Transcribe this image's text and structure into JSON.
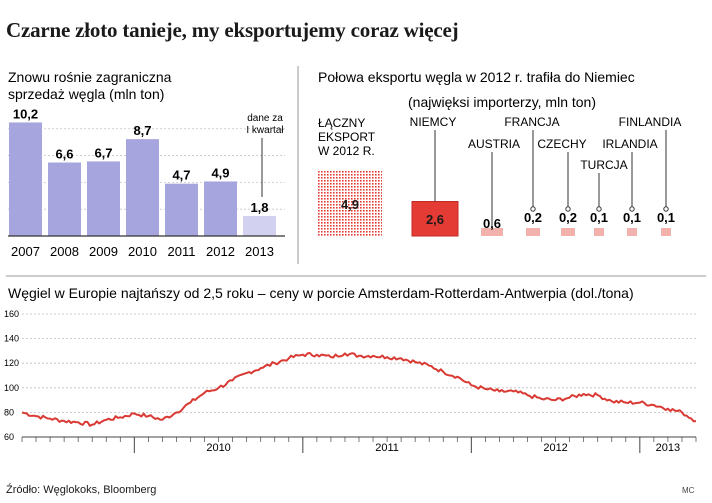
{
  "title": "Czarne złoto tanieje, my eksportujemy coraz więcej",
  "source": "Źródło: Węglokoks, Bloomberg",
  "credit": "MC",
  "chart_data": [
    {
      "type": "bar",
      "title": "Znowu rośnie zagraniczna sprzedaż węgla (mln ton)",
      "title_lines": [
        "Znowu rośnie zagraniczna",
        "sprzedaż węgla (mln ton)"
      ],
      "categories": [
        "2007",
        "2008",
        "2009",
        "2010",
        "2011",
        "2012",
        "2013"
      ],
      "values": [
        10.2,
        6.6,
        6.7,
        8.7,
        4.7,
        4.9,
        1.8
      ],
      "value_labels": [
        "10,2",
        "6,6",
        "6,7",
        "8,7",
        "4,7",
        "4,9",
        "1,8"
      ],
      "annotation_lines": [
        "dane za",
        "I kwartał"
      ],
      "ylim": [
        0,
        10.6
      ],
      "colors": {
        "bar": "#a7a5dd",
        "bar_last": "#d2d2f0",
        "axis": "#333333"
      }
    },
    {
      "type": "bar",
      "title": "Połowa eksportu węgla w 2012 r. trafiła do Niemiec",
      "subtitle": "(najwięksi importerzy, mln ton)",
      "total_label_lines": [
        "ŁĄCZNY",
        "EKSPORT",
        "W 2012 R."
      ],
      "total": {
        "value": 4.9,
        "label": "4,9"
      },
      "categories": [
        "NIEMCY",
        "AUSTRIA",
        "FRANCJA",
        "CZECHY",
        "TURCJA",
        "IRLANDIA",
        "FINLANDIA"
      ],
      "values": [
        2.6,
        0.6,
        0.2,
        0.2,
        0.1,
        0.1,
        0.1
      ],
      "value_labels": [
        "2,6",
        "0,6",
        "0,2",
        "0,2",
        "0,1",
        "0,1",
        "0,1"
      ],
      "colors": {
        "total": "#e43b35",
        "germany": "#e43b35",
        "others": "#f3b1ad"
      }
    },
    {
      "type": "line",
      "title": "Węgiel w Europie najtańszy od 2,5 roku – ceny w porcie Amsterdam-Rotterdam-Antwerpia (dol./tona)",
      "ylim": [
        60,
        160
      ],
      "yticks": [
        60,
        80,
        100,
        120,
        140,
        160
      ],
      "xlim": [
        "2009-05",
        "2013-05"
      ],
      "year_labels": [
        "2010",
        "2011",
        "2012",
        "2013"
      ],
      "series": [
        {
          "color": "#d93a33",
          "x": [
            "2009-05",
            "2009-06",
            "2009-07",
            "2009-08",
            "2009-09",
            "2009-10",
            "2009-11",
            "2009-12",
            "2010-01",
            "2010-02",
            "2010-03",
            "2010-04",
            "2010-05",
            "2010-06",
            "2010-07",
            "2010-08",
            "2010-09",
            "2010-10",
            "2010-11",
            "2010-12",
            "2011-01",
            "2011-02",
            "2011-03",
            "2011-04",
            "2011-05",
            "2011-06",
            "2011-07",
            "2011-08",
            "2011-09",
            "2011-10",
            "2011-11",
            "2011-12",
            "2012-01",
            "2012-02",
            "2012-03",
            "2012-04",
            "2012-05",
            "2012-06",
            "2012-07",
            "2012-08",
            "2012-09",
            "2012-10",
            "2012-11",
            "2012-12",
            "2013-01",
            "2013-02",
            "2013-03",
            "2013-04",
            "2013-05"
          ],
          "values": [
            80,
            77,
            75,
            73,
            72,
            70,
            74,
            76,
            79,
            77,
            74,
            80,
            88,
            96,
            100,
            106,
            112,
            116,
            120,
            124,
            127,
            127,
            125,
            128,
            126,
            126,
            125,
            124,
            121,
            118,
            113,
            109,
            102,
            99,
            97,
            97,
            94,
            91,
            90,
            92,
            95,
            94,
            89,
            88,
            88,
            86,
            83,
            80,
            73
          ]
        }
      ]
    }
  ]
}
